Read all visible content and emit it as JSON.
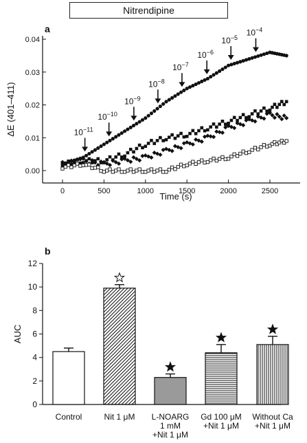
{
  "chart_data": [
    {
      "panel": "a",
      "type": "scatter",
      "title": "Nitrendipine",
      "xlabel": "Time (s)",
      "ylabel": "ΔE (401–411)",
      "xlim": [
        0,
        2750
      ],
      "ylim": [
        -0.004,
        0.04
      ],
      "x_ticks": [
        0,
        500,
        1000,
        1500,
        2000,
        2500
      ],
      "y_ticks": [
        0.0,
        0.01,
        0.02,
        0.03,
        0.04
      ],
      "y_tick_labels": [
        "0.00",
        "0.01",
        "0.02",
        "0.03",
        "0.04"
      ],
      "series": [
        {
          "marker": "filled-circle",
          "x": [
            0,
            250,
            500,
            750,
            1000,
            1250,
            1500,
            1750,
            2000,
            2250,
            2500,
            2700
          ],
          "values": [
            0.002,
            0.004,
            0.008,
            0.012,
            0.016,
            0.021,
            0.025,
            0.028,
            0.032,
            0.034,
            0.036,
            0.035
          ]
        },
        {
          "marker": "filled-square",
          "x": [
            0,
            250,
            500,
            750,
            1000,
            1250,
            1500,
            1750,
            2000,
            2250,
            2500,
            2700
          ],
          "values": [
            0.002,
            0.003,
            0.003,
            0.005,
            0.008,
            0.01,
            0.011,
            0.013,
            0.015,
            0.017,
            0.019,
            0.021
          ]
        },
        {
          "marker": "filled-diamond",
          "x": [
            0,
            250,
            500,
            750,
            1000,
            1250,
            1500,
            1750,
            2000,
            2250,
            2500,
            2700
          ],
          "values": [
            0.002,
            0.003,
            0.002,
            0.003,
            0.004,
            0.006,
            0.008,
            0.01,
            0.013,
            0.015,
            0.017,
            0.016
          ]
        },
        {
          "marker": "open-square",
          "x": [
            0,
            250,
            500,
            750,
            1000,
            1250,
            1500,
            1750,
            2000,
            2250,
            2500,
            2700
          ],
          "values": [
            0.001,
            0.002,
            0.0,
            0.0,
            0.0,
            0.0,
            0.002,
            0.003,
            0.004,
            0.006,
            0.008,
            0.009
          ]
        }
      ],
      "annotations": [
        {
          "base": "10",
          "exp": "−11",
          "x": 270
        },
        {
          "base": "10",
          "exp": "−10",
          "x": 560
        },
        {
          "base": "10",
          "exp": "−9",
          "x": 860
        },
        {
          "base": "10",
          "exp": "−8",
          "x": 1150
        },
        {
          "base": "10",
          "exp": "−7",
          "x": 1440
        },
        {
          "base": "10",
          "exp": "−6",
          "x": 1740
        },
        {
          "base": "10",
          "exp": "−5",
          "x": 2030
        },
        {
          "base": "10",
          "exp": "−4",
          "x": 2330
        }
      ]
    },
    {
      "panel": "b",
      "type": "bar",
      "ylabel": "AUC",
      "ylim": [
        0,
        12
      ],
      "y_ticks": [
        0,
        2,
        4,
        6,
        8,
        10,
        12
      ],
      "categories": [
        [
          "Control"
        ],
        [
          "Nit 1 μM"
        ],
        [
          "L-NOARG",
          "1 mM",
          "+Nit 1 μM"
        ],
        [
          "Gd 100 μM",
          "+Nit 1 μM"
        ],
        [
          "Without Ca",
          "+Nit 1 μM"
        ]
      ],
      "values": [
        4.5,
        9.9,
        2.3,
        4.4,
        5.1
      ],
      "errors": [
        0.3,
        0.3,
        0.3,
        0.7,
        0.7
      ],
      "fills": [
        "open",
        "diagonal-hatch",
        "grey",
        "horizontal-hatch",
        "vertical-hatch"
      ],
      "significance": [
        "",
        "open-star",
        "filled-star",
        "filled-star",
        "filled-star"
      ]
    }
  ],
  "labels": {
    "panel_a": "a",
    "panel_b": "b"
  },
  "colors": {
    "ink": "#111111",
    "grey_fill": "#9a9a9a"
  }
}
